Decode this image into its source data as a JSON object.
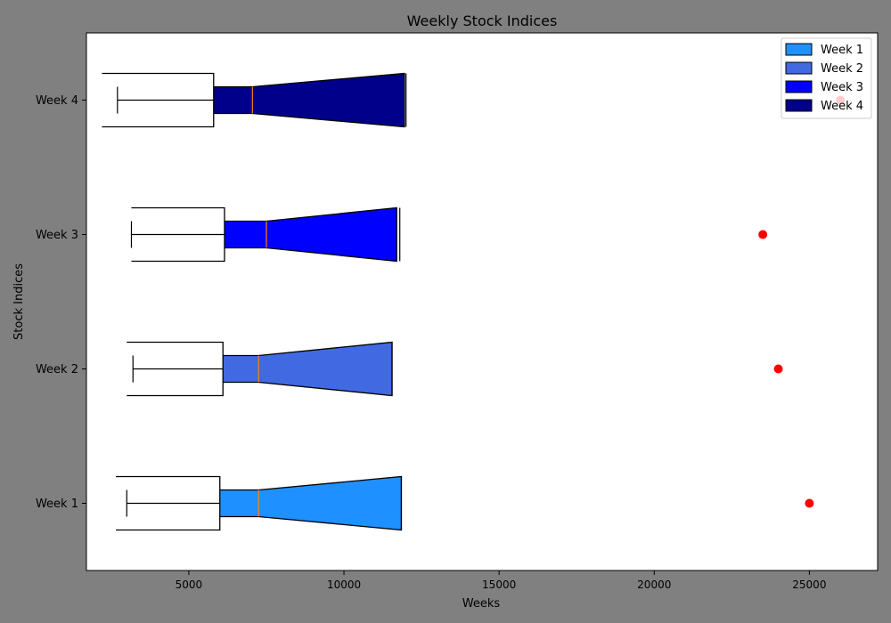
{
  "chart_data": {
    "type": "box",
    "orientation": "horizontal",
    "notched": true,
    "title": "Weekly Stock Indices",
    "xlabel": "Weeks",
    "ylabel": "Stock Indices",
    "xlim": [
      1700,
      27200
    ],
    "x_ticks": [
      5000,
      10000,
      15000,
      20000,
      25000
    ],
    "x_tick_labels": [
      "5000",
      "10000",
      "15000",
      "20000",
      "25000"
    ],
    "categories": [
      "Week 1",
      "Week 2",
      "Week 3",
      "Week 4"
    ],
    "grid": false,
    "legend_position": "top-right",
    "series": [
      {
        "name": "Week 1",
        "color": "#1e90ff",
        "whisker_low": 3000,
        "q1": 6000,
        "median": 7250,
        "q3": 11850,
        "whisker_high": 11850,
        "notch_low": 2650,
        "notch_high": 11850,
        "outliers": [
          25000
        ]
      },
      {
        "name": "Week 2",
        "color": "#4169e1",
        "whisker_low": 3200,
        "q1": 6100,
        "median": 7250,
        "q3": 11550,
        "whisker_high": 11550,
        "notch_low": 3000,
        "notch_high": 11550,
        "outliers": [
          24000
        ]
      },
      {
        "name": "Week 3",
        "color": "#0000ff",
        "whisker_low": 3150,
        "q1": 6150,
        "median": 7500,
        "q3": 11700,
        "whisker_high": 11800,
        "notch_low": 3150,
        "notch_high": 11700,
        "outliers": [
          23500
        ]
      },
      {
        "name": "Week 4",
        "color": "#00008b",
        "whisker_low": 2700,
        "q1": 5800,
        "median": 7050,
        "q3": 11950,
        "whisker_high": 12000,
        "notch_low": 2200,
        "notch_high": 11950,
        "outliers": [
          26000
        ]
      }
    ],
    "outlier_color": "#ff0000"
  }
}
